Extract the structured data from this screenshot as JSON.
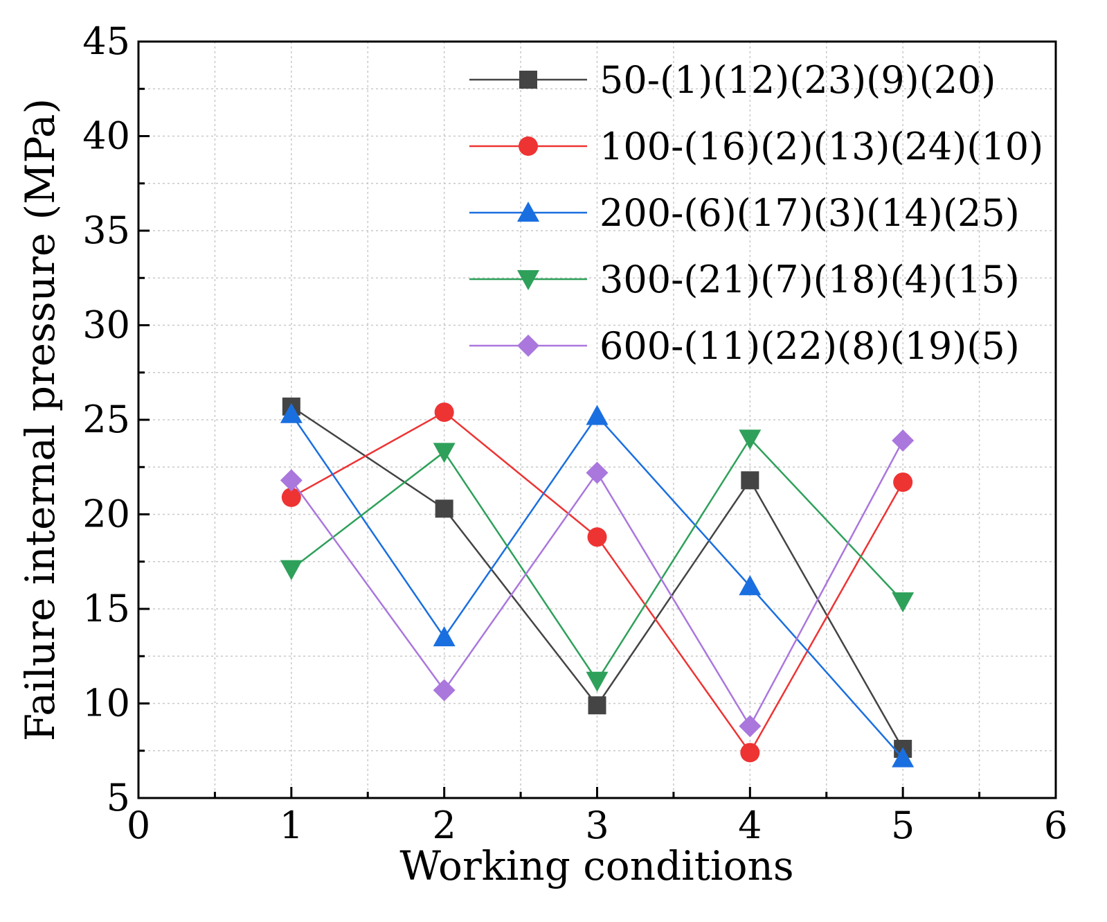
{
  "chart_data": {
    "type": "line",
    "xlabel": "Working conditions",
    "ylabel": "Failure internal pressure (MPa)",
    "xlim": [
      0,
      6
    ],
    "ylim": [
      5,
      45
    ],
    "xticks": [
      0,
      1,
      2,
      3,
      4,
      5,
      6
    ],
    "yticks": [
      5,
      10,
      15,
      20,
      25,
      30,
      35,
      40,
      45
    ],
    "grid": true,
    "legend_position": "top-right",
    "x": [
      1,
      2,
      3,
      4,
      5
    ],
    "series": [
      {
        "name": "50-(1)(12)(23)(9)(20)",
        "color": "#444444",
        "marker": "square",
        "values": [
          25.7,
          20.3,
          9.9,
          21.8,
          7.6
        ]
      },
      {
        "name": "100-(16)(2)(13)(24)(10)",
        "color": "#ee3333",
        "marker": "circle",
        "values": [
          20.9,
          25.4,
          18.8,
          7.4,
          21.7
        ]
      },
      {
        "name": "200-(6)(17)(3)(14)(25)",
        "color": "#1a6fe0",
        "marker": "triangle-up",
        "values": [
          25.3,
          13.5,
          25.2,
          16.2,
          7.1
        ]
      },
      {
        "name": "300-(21)(7)(18)(4)(15)",
        "color": "#2ea05a",
        "marker": "triangle-down",
        "values": [
          17.1,
          23.3,
          11.2,
          24.0,
          15.4
        ]
      },
      {
        "name": "600-(11)(22)(8)(19)(5)",
        "color": "#aa77dd",
        "marker": "diamond",
        "values": [
          21.8,
          10.7,
          22.2,
          8.8,
          23.9
        ]
      }
    ]
  }
}
